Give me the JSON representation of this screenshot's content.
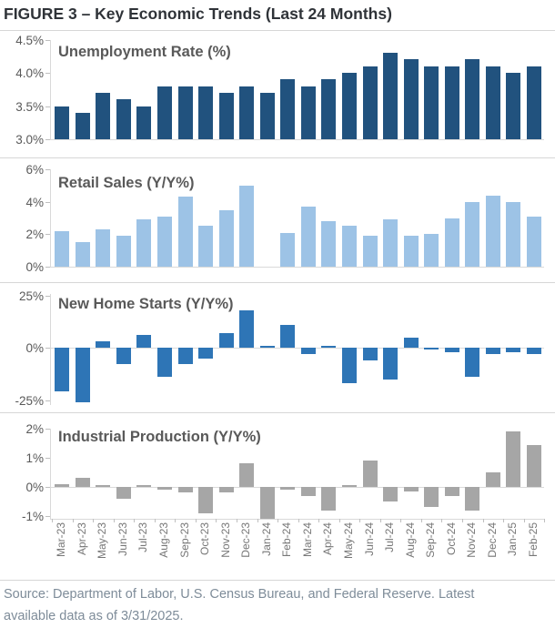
{
  "figure": {
    "title": "FIGURE 3 – Key Economic Trends (Last 24 Months)",
    "source_line1": "Source: Department of Labor, U.S. Census Bureau, and Federal Reserve. Latest",
    "source_line2": "available data as of 3/31/2025."
  },
  "colors": {
    "unemployment_bar": "#21527E",
    "retail_sales_bar": "#9DC3E6",
    "home_starts_bar": "#2E75B6",
    "industrial_bar": "#A6A6A6",
    "axis_text": "#595959",
    "month_text": "#767676",
    "title_text": "#2F3338",
    "source_text": "#7E8C99",
    "grid_line": "#D9D9D9"
  },
  "chart_data": {
    "type": "bar",
    "x_categories": [
      "Mar-23",
      "Apr-23",
      "May-23",
      "Jun-23",
      "Jul-23",
      "Aug-23",
      "Sep-23",
      "Oct-23",
      "Nov-23",
      "Dec-23",
      "Jan-24",
      "Feb-24",
      "Mar-24",
      "Apr-24",
      "May-24",
      "Jun-24",
      "Jul-24",
      "Aug-24",
      "Sep-24",
      "Oct-24",
      "Nov-24",
      "Dec-24",
      "Jan-25",
      "Feb-25"
    ],
    "panels": [
      {
        "type": "bar",
        "title": "Unemployment Rate (%)",
        "color": "#21527E",
        "ylim": [
          3.0,
          4.5
        ],
        "baseline": 3.0,
        "grid": false,
        "yticks": [
          {
            "label": "4.5%",
            "value": 4.5
          },
          {
            "label": "4.0%",
            "value": 4.0
          },
          {
            "label": "3.5%",
            "value": 3.5
          },
          {
            "label": "3.0%",
            "value": 3.0
          }
        ],
        "values": [
          3.5,
          3.4,
          3.7,
          3.6,
          3.5,
          3.8,
          3.8,
          3.8,
          3.7,
          3.8,
          3.7,
          3.9,
          3.8,
          3.9,
          4.0,
          4.1,
          4.3,
          4.2,
          4.1,
          4.1,
          4.2,
          4.1,
          4.0,
          4.1
        ]
      },
      {
        "type": "bar",
        "title": "Retail Sales (Y/Y%)",
        "color": "#9DC3E6",
        "ylim": [
          0,
          6
        ],
        "baseline": 0,
        "grid": false,
        "yticks": [
          {
            "label": "6%",
            "value": 6
          },
          {
            "label": "4%",
            "value": 4
          },
          {
            "label": "2%",
            "value": 2
          },
          {
            "label": "0%",
            "value": 0
          }
        ],
        "values": [
          2.2,
          1.5,
          2.3,
          1.9,
          2.9,
          3.1,
          4.3,
          2.5,
          3.5,
          5.0,
          0.0,
          2.1,
          3.7,
          2.8,
          2.5,
          1.9,
          2.9,
          1.9,
          2.0,
          3.0,
          4.0,
          4.4,
          4.0,
          3.1
        ]
      },
      {
        "type": "bar",
        "title": "New Home Starts (Y/Y%)",
        "color": "#2E75B6",
        "ylim": [
          -27,
          25
        ],
        "baseline": 0,
        "grid": false,
        "yticks": [
          {
            "label": "25%",
            "value": 25
          },
          {
            "label": "0%",
            "value": 0
          },
          {
            "label": "-25%",
            "value": -25
          }
        ],
        "values": [
          -21,
          -26,
          3,
          -8,
          6,
          -14,
          -8,
          -5,
          7,
          18,
          1,
          11,
          -3,
          1,
          -17,
          -6,
          -15,
          5,
          -1,
          -2,
          -14,
          -3,
          -2,
          -3
        ]
      },
      {
        "type": "bar",
        "title": "Industrial Production (Y/Y%)",
        "color": "#A6A6A6",
        "ylim": [
          -1.15,
          2
        ],
        "baseline": 0,
        "grid": false,
        "yticks": [
          {
            "label": "2%",
            "value": 2
          },
          {
            "label": "1%",
            "value": 1
          },
          {
            "label": "0%",
            "value": 0
          },
          {
            "label": "-1%",
            "value": -1
          }
        ],
        "values": [
          0.1,
          0.3,
          0.05,
          -0.4,
          0.05,
          -0.1,
          -0.2,
          -0.9,
          -0.2,
          0.8,
          -1.1,
          -0.1,
          -0.3,
          -0.8,
          0.05,
          0.9,
          -0.5,
          -0.15,
          -0.7,
          -0.3,
          -0.8,
          0.5,
          1.9,
          1.45
        ]
      }
    ]
  }
}
